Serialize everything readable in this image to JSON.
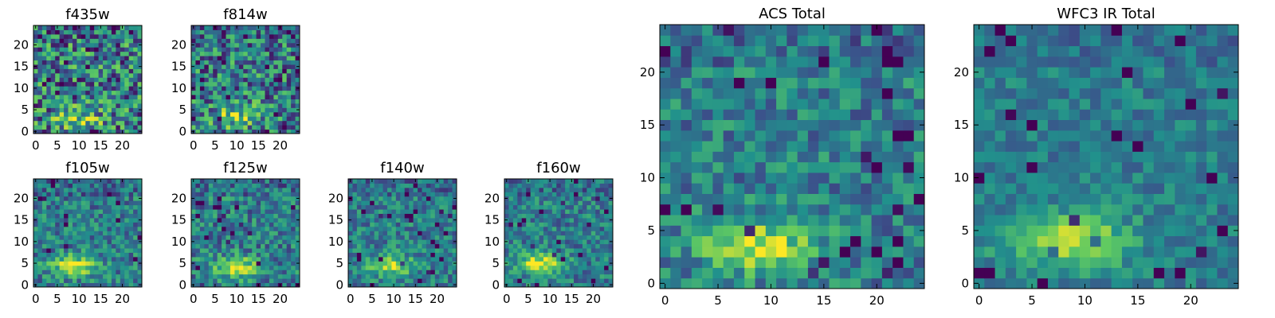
{
  "chart_data": [
    {
      "type": "heatmap",
      "title": "f435w",
      "xticks": [
        0,
        5,
        10,
        15,
        20
      ],
      "yticks": [
        0,
        5,
        10,
        15,
        20
      ],
      "xlim": [
        0,
        25
      ],
      "ylim": [
        0,
        25
      ],
      "grid": false,
      "colormap": "viridis",
      "blob": [
        10,
        3
      ],
      "spread": 0.22,
      "noise": 0.55
    },
    {
      "type": "heatmap",
      "title": "f814w",
      "xticks": [
        0,
        5,
        10,
        15,
        20
      ],
      "yticks": [
        0,
        5,
        10,
        15,
        20
      ],
      "xlim": [
        0,
        25
      ],
      "ylim": [
        0,
        25
      ],
      "grid": false,
      "colormap": "viridis",
      "blob": [
        10,
        3.5
      ],
      "spread": 0.24,
      "noise": 0.5
    },
    {
      "type": "heatmap",
      "title": "f105w",
      "xticks": [
        0,
        5,
        10,
        15,
        20
      ],
      "yticks": [
        0,
        5,
        10,
        15,
        20
      ],
      "xlim": [
        0,
        25
      ],
      "ylim": [
        0,
        25
      ],
      "grid": false,
      "colormap": "viridis",
      "blob": [
        9,
        4.5
      ],
      "spread": 0.3,
      "noise": 0.32
    },
    {
      "type": "heatmap",
      "title": "f125w",
      "xticks": [
        0,
        5,
        10,
        15,
        20
      ],
      "yticks": [
        0,
        5,
        10,
        15,
        20
      ],
      "xlim": [
        0,
        25
      ],
      "ylim": [
        0,
        25
      ],
      "grid": false,
      "colormap": "viridis",
      "blob": [
        10,
        4
      ],
      "spread": 0.3,
      "noise": 0.34
    },
    {
      "type": "heatmap",
      "title": "f140w",
      "xticks": [
        0,
        5,
        10,
        15,
        20
      ],
      "yticks": [
        0,
        5,
        10,
        15,
        20
      ],
      "xlim": [
        0,
        25
      ],
      "ylim": [
        0,
        25
      ],
      "grid": false,
      "colormap": "viridis",
      "blob": [
        9,
        4.5
      ],
      "spread": 0.3,
      "noise": 0.3
    },
    {
      "type": "heatmap",
      "title": "f160w",
      "xticks": [
        0,
        5,
        10,
        15,
        20
      ],
      "yticks": [
        0,
        5,
        10,
        15,
        20
      ],
      "xlim": [
        0,
        25
      ],
      "ylim": [
        0,
        25
      ],
      "grid": false,
      "colormap": "viridis",
      "blob": [
        8,
        5
      ],
      "spread": 0.32,
      "noise": 0.3
    },
    {
      "type": "heatmap",
      "title": "ACS Total",
      "xticks": [
        0,
        5,
        10,
        15,
        20
      ],
      "yticks": [
        0,
        5,
        10,
        15,
        20
      ],
      "xlim": [
        0,
        25
      ],
      "ylim": [
        0,
        25
      ],
      "grid": false,
      "colormap": "viridis",
      "blob": [
        9,
        3.5
      ],
      "spread": 0.3,
      "noise": 0.3
    },
    {
      "type": "heatmap",
      "title": "WFC3 IR Total",
      "xticks": [
        0,
        5,
        10,
        15,
        20
      ],
      "yticks": [
        0,
        5,
        10,
        15,
        20
      ],
      "xlim": [
        0,
        25
      ],
      "ylim": [
        0,
        25
      ],
      "grid": false,
      "colormap": "viridis",
      "blob": [
        8.5,
        4
      ],
      "spread": 0.32,
      "noise": 0.2
    }
  ]
}
